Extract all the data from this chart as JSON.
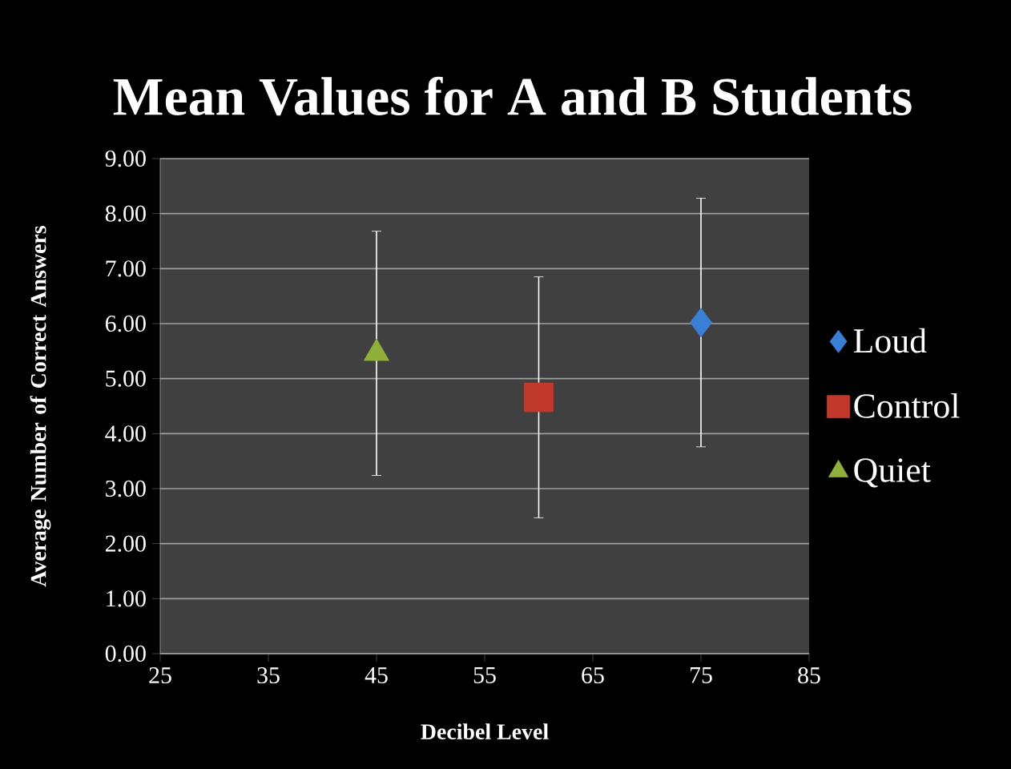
{
  "chart_data": {
    "type": "scatter",
    "title": "Mean Values for A and B Students",
    "xlabel": "Decibel Level",
    "ylabel": "Average Number  of Correct Answers",
    "series": [
      {
        "name": "Loud",
        "color": "#3a7fd5",
        "marker": "diamond",
        "x": [
          75
        ],
        "values": [
          6.02
        ],
        "errors": [
          2.26
        ]
      },
      {
        "name": "Control",
        "color": "#c0392b",
        "marker": "square",
        "x": [
          60
        ],
        "values": [
          4.66
        ],
        "errors": [
          2.19
        ]
      },
      {
        "name": "Quiet",
        "color": "#8fb03a",
        "marker": "triangle",
        "x": [
          45
        ],
        "values": [
          5.46
        ],
        "errors": [
          2.22
        ]
      }
    ],
    "xlim": [
      25,
      85
    ],
    "xticks": [
      25,
      35,
      45,
      55,
      65,
      75,
      85
    ],
    "ylim": [
      0,
      9
    ],
    "yticks": [
      {
        "value": 0,
        "label": "0.00"
      },
      {
        "value": 1,
        "label": "1.00"
      },
      {
        "value": 2,
        "label": "2.00"
      },
      {
        "value": 3,
        "label": "3.00"
      },
      {
        "value": 4,
        "label": "4.00"
      },
      {
        "value": 5,
        "label": "5.00"
      },
      {
        "value": 6,
        "label": "6.00"
      },
      {
        "value": 7,
        "label": "7.00"
      },
      {
        "value": 8,
        "label": "8.00"
      },
      {
        "value": 9,
        "label": "9.00"
      }
    ],
    "grid": "y",
    "legend": "right"
  }
}
